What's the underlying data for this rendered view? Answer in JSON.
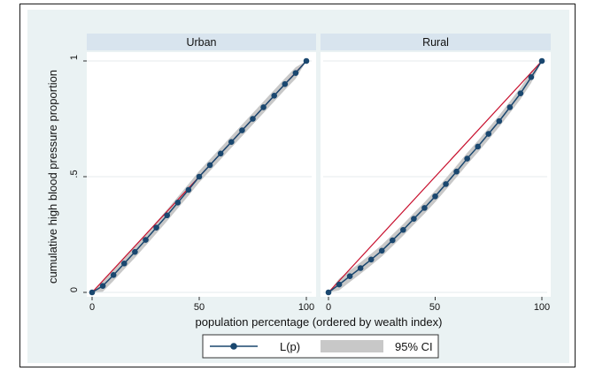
{
  "colors": {
    "outer_bg": "#eaf2f3",
    "panel_bg": "#ffffff",
    "strip_bg": "#d8e4ee",
    "gridline": "#e4ebee",
    "curve": "#1a476f",
    "ci_fill": "#c8c8c8",
    "equality_line": "#c8102e"
  },
  "chart_data": {
    "type": "line",
    "ylabel": "cumulative high blood pressure proportion",
    "xlabel": "population percentage (ordered by wealth index)",
    "xlim": [
      0,
      100
    ],
    "ylim": [
      0,
      1
    ],
    "x_tick_labels": [
      "0",
      "50",
      "100"
    ],
    "y_tick_labels": [
      "0",
      ".5",
      "1"
    ],
    "grid": true,
    "legend": {
      "position": "bottom",
      "entries": [
        "L(p)",
        "95% CI"
      ]
    },
    "panels": [
      {
        "title": "Urban",
        "series": [
          {
            "name": "L(p)",
            "x": [
              0,
              5,
              10,
              15,
              20,
              25,
              30,
              35,
              40,
              45,
              50,
              55,
              60,
              65,
              70,
              75,
              80,
              85,
              90,
              95,
              100
            ],
            "y": [
              0,
              0.028,
              0.075,
              0.125,
              0.175,
              0.227,
              0.28,
              0.333,
              0.388,
              0.443,
              0.5,
              0.55,
              0.6,
              0.65,
              0.7,
              0.75,
              0.8,
              0.85,
              0.9,
              0.948,
              1.0
            ]
          }
        ],
        "ci_halfwidth": 0.025
      },
      {
        "title": "Rural",
        "series": [
          {
            "name": "L(p)",
            "x": [
              0,
              5,
              10,
              15,
              20,
              25,
              30,
              35,
              40,
              45,
              50,
              55,
              60,
              65,
              70,
              75,
              80,
              85,
              90,
              95,
              100
            ],
            "y": [
              0,
              0.034,
              0.07,
              0.105,
              0.142,
              0.18,
              0.225,
              0.27,
              0.318,
              0.365,
              0.415,
              0.468,
              0.522,
              0.578,
              0.63,
              0.685,
              0.74,
              0.8,
              0.86,
              0.93,
              1.0
            ]
          }
        ],
        "ci_halfwidth": 0.025
      }
    ]
  }
}
